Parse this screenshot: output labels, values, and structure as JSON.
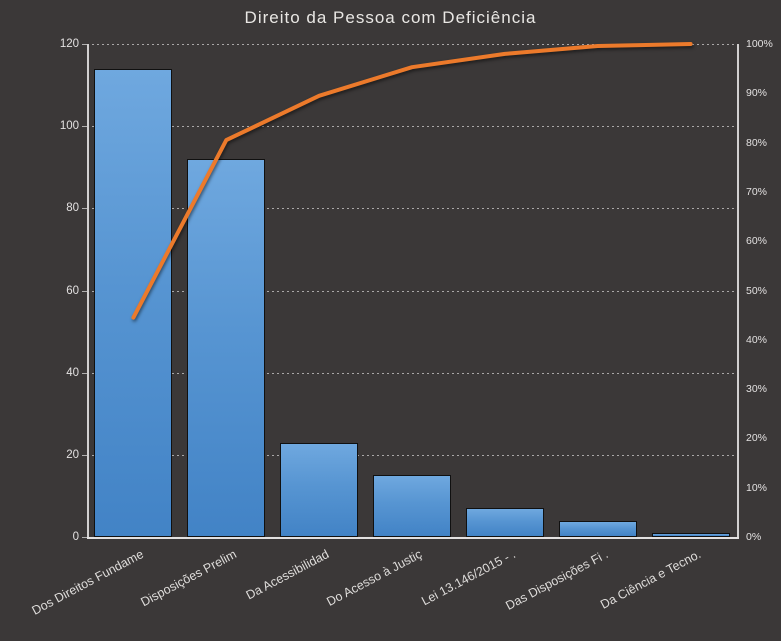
{
  "title": "Direito da Pessoa com Deficiência",
  "colors": {
    "background": "#3B3838",
    "bar_fill_top": "#6FA8DF",
    "bar_fill_bottom": "#4283C6",
    "bar_border": "#101010",
    "cumulative_line": "#EC7A2B",
    "grid": "#C6C4C4",
    "axis": "#D2D0D0",
    "text": "#E3E1E1"
  },
  "chart_data": {
    "type": "bar",
    "subtype": "pareto-with-cumulative-line",
    "title": "Direito da Pessoa com Deficiência",
    "categories": [
      "Dos Direitos Fundame",
      "Disposições Prelim",
      "Da Acessibilidad",
      "Do Acesso à Justiç",
      "Lei 13.146/2015 - .",
      "Das Disposições Fi .",
      "Da Ciência e Tecno."
    ],
    "series": [
      {
        "type": "bar",
        "values": [
          114,
          92,
          23,
          15,
          7,
          4,
          1
        ]
      },
      {
        "type": "line",
        "cumulative_pct": [
          44.5,
          80.5,
          89.5,
          95.3,
          98.0,
          99.6,
          100
        ]
      }
    ],
    "left_axis": {
      "min": 0,
      "max": 120,
      "tick_step": 20,
      "tick_labels": [
        "0",
        "20",
        "40",
        "60",
        "80",
        "100",
        "120"
      ]
    },
    "right_axis": {
      "min": 0,
      "max": 100,
      "tick_step": 10,
      "tick_labels": [
        "0%",
        "10%",
        "20%",
        "30%",
        "40%",
        "50%",
        "60%",
        "70%",
        "80%",
        "90%",
        "100%"
      ]
    },
    "grid": {
      "horizontal": true,
      "style": "dashed"
    },
    "legend": "none",
    "xlabel": "",
    "ylabel": ""
  }
}
